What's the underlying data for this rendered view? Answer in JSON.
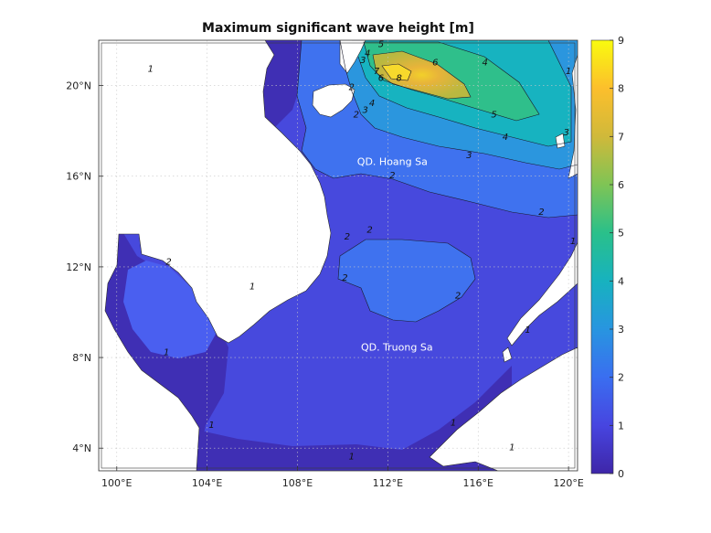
{
  "chart_data": {
    "type": "heatmap",
    "title": "Maximum significant wave height [m]",
    "xlabel": "",
    "ylabel": "",
    "xlim": [
      99.2,
      120.4
    ],
    "ylim": [
      3.0,
      22.0
    ],
    "x_ticks": [
      {
        "value": 100,
        "label": "100°E"
      },
      {
        "value": 104,
        "label": "104°E"
      },
      {
        "value": 108,
        "label": "108°E"
      },
      {
        "value": 112,
        "label": "112°E"
      },
      {
        "value": 116,
        "label": "116°E"
      },
      {
        "value": 120,
        "label": "120°E"
      }
    ],
    "y_ticks": [
      {
        "value": 4,
        "label": "4°N"
      },
      {
        "value": 8,
        "label": "8°N"
      },
      {
        "value": 12,
        "label": "12°N"
      },
      {
        "value": 16,
        "label": "16°N"
      },
      {
        "value": 20,
        "label": "20°N"
      }
    ],
    "grid": true,
    "colorbar": {
      "min": 0,
      "max": 9,
      "ticks": [
        "0",
        "1",
        "2",
        "3",
        "4",
        "5",
        "6",
        "7",
        "8",
        "9"
      ],
      "placement": "right",
      "colors": [
        "#3e26a8",
        "#4745e0",
        "#3a6ef0",
        "#2895e0",
        "#17b2bf",
        "#2ac08a",
        "#7fc455",
        "#d0b93a",
        "#fcbf2c",
        "#f9fb0e"
      ]
    },
    "contour_labels": [
      {
        "text": "1",
        "lon": 101.5,
        "lat": 20.6
      },
      {
        "text": "2",
        "lon": 110.4,
        "lat": 19.8
      },
      {
        "text": "2",
        "lon": 110.6,
        "lat": 18.6
      },
      {
        "text": "3",
        "lon": 111.0,
        "lat": 18.8
      },
      {
        "text": "4",
        "lon": 111.3,
        "lat": 19.1
      },
      {
        "text": "5",
        "lon": 111.7,
        "lat": 21.7
      },
      {
        "text": "4",
        "lon": 111.1,
        "lat": 21.3
      },
      {
        "text": "3",
        "lon": 110.9,
        "lat": 21.0
      },
      {
        "text": "7",
        "lon": 111.5,
        "lat": 20.5
      },
      {
        "text": "6",
        "lon": 111.7,
        "lat": 20.2
      },
      {
        "text": "8",
        "lon": 112.5,
        "lat": 20.2
      },
      {
        "text": "6",
        "lon": 114.1,
        "lat": 20.9
      },
      {
        "text": "4",
        "lon": 116.3,
        "lat": 20.9
      },
      {
        "text": "5",
        "lon": 116.7,
        "lat": 18.6
      },
      {
        "text": "4",
        "lon": 117.2,
        "lat": 17.6
      },
      {
        "text": "3",
        "lon": 119.9,
        "lat": 17.8
      },
      {
        "text": "3",
        "lon": 115.6,
        "lat": 16.8
      },
      {
        "text": "2",
        "lon": 112.2,
        "lat": 15.9
      },
      {
        "text": "2",
        "lon": 118.8,
        "lat": 14.3
      },
      {
        "text": "2",
        "lon": 110.2,
        "lat": 13.2
      },
      {
        "text": "2",
        "lon": 111.2,
        "lat": 13.5
      },
      {
        "text": "2",
        "lon": 110.1,
        "lat": 11.4
      },
      {
        "text": "2",
        "lon": 115.1,
        "lat": 10.6
      },
      {
        "text": "2",
        "lon": 102.3,
        "lat": 12.1
      },
      {
        "text": "1",
        "lon": 102.2,
        "lat": 8.1
      },
      {
        "text": "1",
        "lon": 106.0,
        "lat": 11.0
      },
      {
        "text": "1",
        "lon": 104.2,
        "lat": 4.9
      },
      {
        "text": "1",
        "lon": 110.4,
        "lat": 3.5
      },
      {
        "text": "1",
        "lon": 114.9,
        "lat": 5.0
      },
      {
        "text": "1",
        "lon": 118.2,
        "lat": 9.1
      },
      {
        "text": "1",
        "lon": 120.2,
        "lat": 13.0
      },
      {
        "text": "1",
        "lon": 120.0,
        "lat": 20.5
      },
      {
        "text": "1",
        "lon": 117.5,
        "lat": 3.9
      }
    ],
    "place_labels": [
      {
        "text": "QD. Hoang Sa",
        "lon": 112.2,
        "lat": 16.5
      },
      {
        "text": "QD. Truong Sa",
        "lon": 112.4,
        "lat": 8.3
      }
    ]
  }
}
